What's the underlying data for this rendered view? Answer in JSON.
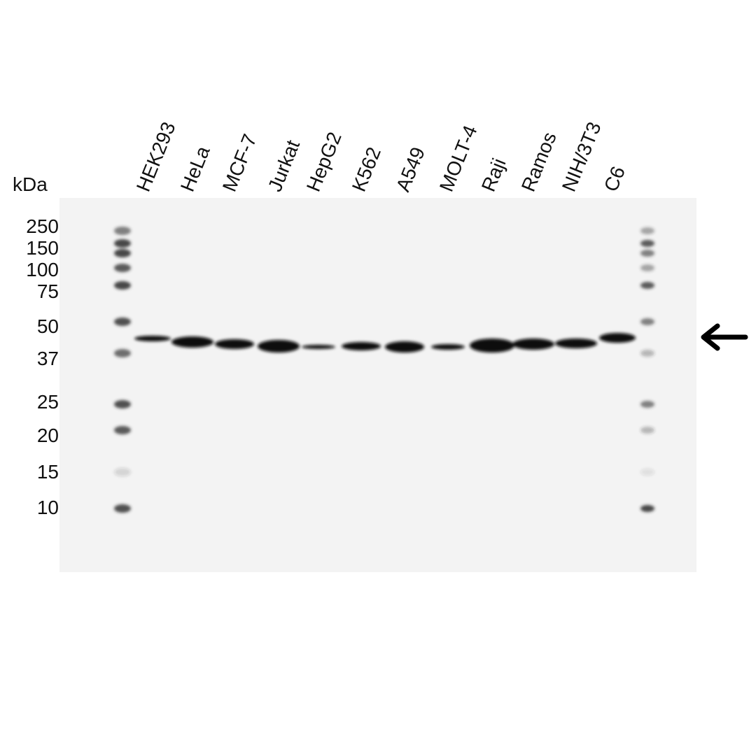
{
  "axis_label": "kDa",
  "markers": [
    250,
    150,
    100,
    75,
    50,
    37,
    25,
    20,
    15,
    10
  ],
  "lanes": [
    "HEK293",
    "HeLa",
    "MCF-7",
    "Jurkat",
    "HepG2",
    "K562",
    "A549",
    "MOLT-4",
    "Raji",
    "Ramos",
    "NIH/3T3",
    "C6"
  ]
}
